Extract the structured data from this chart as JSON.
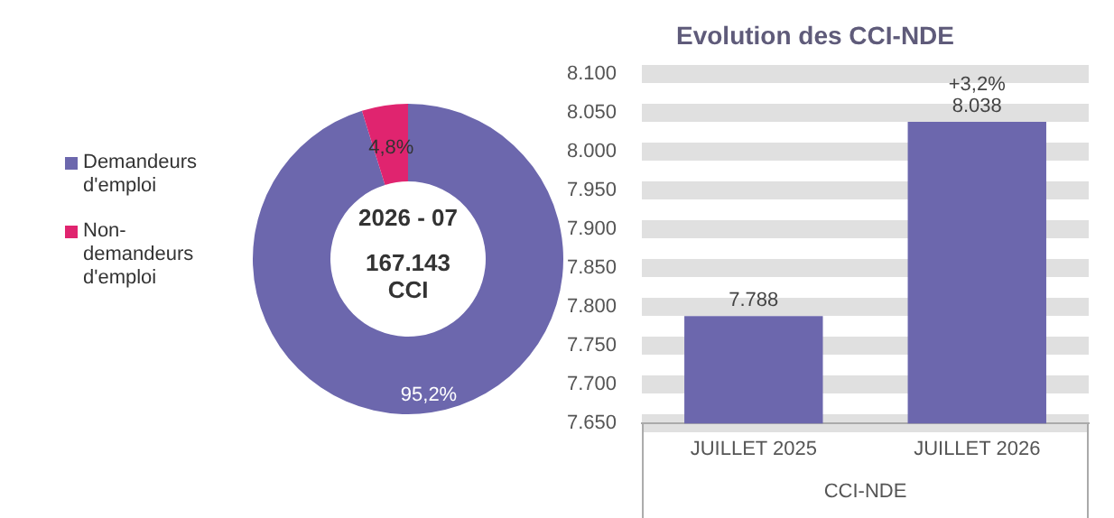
{
  "chart_data": [
    {
      "type": "donut",
      "categories": [
        "Demandeurs d'emploi",
        "Non-demandeurs d'emploi"
      ],
      "values": [
        95.2,
        4.8
      ],
      "colors": [
        "#6c67ad",
        "#e0246f"
      ],
      "value_labels": [
        "95,2%",
        "4,8%"
      ],
      "legend": "left",
      "annotations": [
        "2026 - 07",
        "167.143 CCI"
      ]
    },
    {
      "type": "bar",
      "title": "Evolution des CCI-NDE",
      "xlabel": "CCI-NDE",
      "categories": [
        "JUILLET 2025",
        "JUILLET 2026"
      ],
      "values": [
        7788,
        8038
      ],
      "color": "#6c67ad",
      "value_labels": [
        "7.788",
        "8.038"
      ],
      "ylim": [
        7650,
        8100
      ],
      "yticks": [
        {
          "value": 7650,
          "label": "7.650"
        },
        {
          "value": 7700,
          "label": "7.700"
        },
        {
          "value": 7750,
          "label": "7.750"
        },
        {
          "value": 7800,
          "label": "7.800"
        },
        {
          "value": 7850,
          "label": "7.850"
        },
        {
          "value": 7900,
          "label": "7.900"
        },
        {
          "value": 7950,
          "label": "7.950"
        },
        {
          "value": 8000,
          "label": "8.000"
        },
        {
          "value": 8050,
          "label": "8.050"
        },
        {
          "value": 8100,
          "label": "8.100"
        }
      ],
      "grid": "y",
      "legend": false,
      "annotations": [
        {
          "text": "+3,2%",
          "x": "JUILLET 2026",
          "y": 8038
        }
      ]
    }
  ]
}
